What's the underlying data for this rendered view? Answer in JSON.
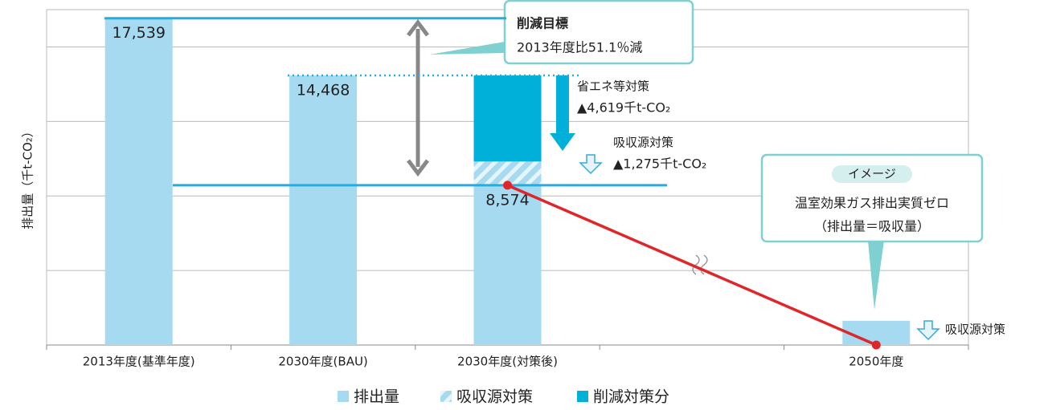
{
  "chart_data": {
    "type": "bar",
    "y_label": "排出量（千t-CO₂）",
    "categories": [
      "2013年度(基準年度)",
      "2030年度(BAU)",
      "2030年度(対策後)",
      null,
      "2050年度"
    ],
    "series": [
      {
        "name": "排出量",
        "color": "#a6daf0",
        "values": [
          17539,
          14468,
          8574,
          null,
          1300
        ],
        "value_labels": [
          "17,539",
          "14,468",
          "8,574",
          null,
          null
        ]
      },
      {
        "name": "吸収源対策",
        "color": "#a6daf0",
        "values": [
          null,
          null,
          1275,
          null,
          null
        ]
      },
      {
        "name": "削減対策分",
        "color": "#00b0d8",
        "values": [
          null,
          null,
          4619,
          null,
          null
        ]
      }
    ],
    "target_line": {
      "color": "#e0262a",
      "values": [
        null,
        null,
        8574,
        null,
        0
      ]
    },
    "ylim": [
      0,
      18000
    ],
    "yticks": [
      0,
      4000,
      8000,
      12000,
      16000
    ],
    "grid": true,
    "annotations": {
      "target_title": "削減目標",
      "target_text": "2013年度比51.1％減",
      "energy_title": "省エネ等対策",
      "energy_value": "▲4,619千t-CO₂",
      "absorption_title": "吸収源対策",
      "absorption_value": "▲1,275千t-CO₂",
      "image_tag": "イメージ",
      "image_line1": "温室効果ガス排出実質ゼロ",
      "image_line2": "（排出量＝吸収量）",
      "absorption_2050": "吸収源対策"
    }
  }
}
